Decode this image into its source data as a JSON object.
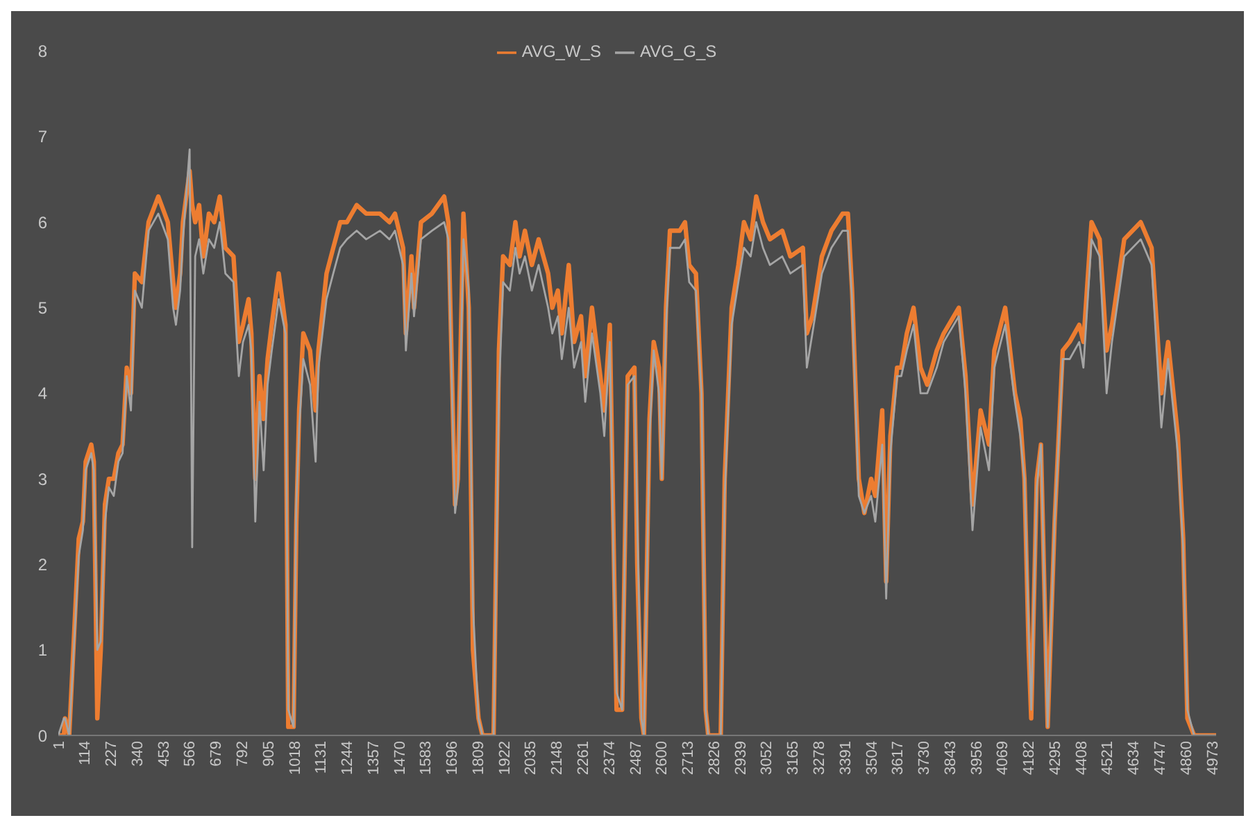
{
  "chart_data": {
    "type": "line",
    "legend": "top",
    "grid": false,
    "x": [
      1,
      25,
      30,
      48,
      89,
      107,
      119,
      143,
      154,
      169,
      184,
      202,
      219,
      240,
      260,
      278,
      296,
      314,
      331,
      361,
      390,
      432,
      473,
      496,
      508,
      526,
      538,
      567,
      578,
      591,
      608,
      626,
      650,
      673,
      697,
      721,
      756,
      779,
      797,
      821,
      833,
      850,
      868,
      886,
      903,
      921,
      951,
      980,
      992,
      1015,
      1027,
      1039,
      1057,
      1086,
      1110,
      1122,
      1157,
      1186,
      1216,
      1245,
      1287,
      1328,
      1387,
      1428,
      1452,
      1487,
      1499,
      1523,
      1534,
      1564,
      1611,
      1664,
      1682,
      1711,
      1723,
      1747,
      1770,
      1788,
      1812,
      1829,
      1877,
      1900,
      1918,
      1947,
      1971,
      1989,
      2012,
      2042,
      2071,
      2112,
      2130,
      2154,
      2171,
      2201,
      2224,
      2254,
      2272,
      2301,
      2337,
      2354,
      2378,
      2396,
      2407,
      2431,
      2455,
      2484,
      2496,
      2514,
      2525,
      2549,
      2567,
      2590,
      2602,
      2620,
      2637,
      2679,
      2702,
      2720,
      2749,
      2773,
      2791,
      2802,
      2856,
      2873,
      2903,
      2932,
      2956,
      2985,
      3009,
      3038,
      3068,
      3121,
      3156,
      3210,
      3227,
      3251,
      3292,
      3333,
      3381,
      3404,
      3422,
      3451,
      3475,
      3504,
      3522,
      3552,
      3569,
      3587,
      3616,
      3634,
      3658,
      3687,
      3717,
      3746,
      3787,
      3817,
      3882,
      3911,
      3941,
      3976,
      4012,
      4035,
      4082,
      4124,
      4147,
      4165,
      4183,
      4194,
      4218,
      4236,
      4265,
      4295,
      4330,
      4360,
      4401,
      4419,
      4454,
      4489,
      4519,
      4542,
      4595,
      4666,
      4713,
      4755,
      4784,
      4826,
      4849,
      4867,
      4896,
      4991
    ],
    "series": [
      {
        "name": "AVG_W_S",
        "color": "#ed7d31",
        "values": [
          0,
          0,
          0.2,
          0,
          2.3,
          2.5,
          3.2,
          3.4,
          3.2,
          0.2,
          1.0,
          2.7,
          3.0,
          3.0,
          3.3,
          3.4,
          4.3,
          4.0,
          5.4,
          5.3,
          6.0,
          6.3,
          6.0,
          5.3,
          5.0,
          5.4,
          6.0,
          6.6,
          6.2,
          6.0,
          6.2,
          5.6,
          6.1,
          6.0,
          6.3,
          5.7,
          5.6,
          4.6,
          4.8,
          5.1,
          4.7,
          3.0,
          4.2,
          3.7,
          4.4,
          4.8,
          5.4,
          4.8,
          0.1,
          0.1,
          2.5,
          3.8,
          4.7,
          4.5,
          3.8,
          4.5,
          5.4,
          5.7,
          6.0,
          6.0,
          6.2,
          6.1,
          6.1,
          6.0,
          6.1,
          5.7,
          4.7,
          5.6,
          5.0,
          6.0,
          6.1,
          6.3,
          6.0,
          2.7,
          3.0,
          6.1,
          5.0,
          1.0,
          0.2,
          0,
          0,
          4.5,
          5.6,
          5.5,
          6.0,
          5.6,
          5.9,
          5.5,
          5.8,
          5.4,
          5.0,
          5.2,
          4.7,
          5.5,
          4.6,
          4.9,
          4.2,
          5.0,
          4.2,
          3.8,
          4.8,
          2.0,
          0.3,
          0.3,
          4.2,
          4.3,
          2.0,
          0.2,
          0,
          3.7,
          4.6,
          4.3,
          3.0,
          5.0,
          5.9,
          5.9,
          6.0,
          5.5,
          5.4,
          4.0,
          0.3,
          0,
          0,
          3.0,
          5.0,
          5.5,
          6.0,
          5.8,
          6.3,
          6.0,
          5.8,
          5.9,
          5.6,
          5.7,
          4.7,
          4.9,
          5.6,
          5.9,
          6.1,
          6.1,
          5.2,
          3.0,
          2.6,
          3.0,
          2.8,
          3.8,
          1.8,
          3.5,
          4.3,
          4.3,
          4.7,
          5.0,
          4.3,
          4.1,
          4.5,
          4.7,
          5.0,
          4.2,
          2.7,
          3.8,
          3.4,
          4.5,
          5.0,
          4.0,
          3.7,
          3.0,
          1.0,
          0.2,
          3.0,
          3.4,
          0.1,
          2.5,
          4.5,
          4.6,
          4.8,
          4.6,
          6.0,
          5.8,
          4.5,
          4.8,
          5.8,
          6.0,
          5.7,
          4.0,
          4.6,
          3.5,
          2.3,
          0.2,
          0,
          0
        ]
      },
      {
        "name": "AVG_G_S",
        "color": "#a5a5a5",
        "values": [
          0,
          0.2,
          0.2,
          0,
          2.1,
          2.4,
          3.1,
          3.3,
          3.1,
          1.0,
          1.1,
          2.5,
          2.9,
          2.8,
          3.2,
          3.3,
          4.2,
          3.8,
          5.2,
          5.0,
          5.9,
          6.1,
          5.8,
          5.0,
          4.8,
          5.2,
          5.8,
          6.85,
          2.2,
          5.6,
          5.8,
          5.4,
          5.8,
          5.7,
          6.0,
          5.4,
          5.3,
          4.2,
          4.6,
          4.8,
          4.5,
          2.5,
          3.9,
          3.1,
          4.1,
          4.5,
          5.1,
          4.7,
          0.3,
          0.1,
          2.7,
          3.6,
          4.4,
          4.1,
          3.2,
          4.3,
          5.1,
          5.4,
          5.7,
          5.8,
          5.9,
          5.8,
          5.9,
          5.8,
          5.9,
          5.5,
          4.5,
          5.4,
          4.9,
          5.8,
          5.9,
          6.0,
          5.8,
          2.6,
          2.9,
          5.8,
          5.2,
          1.5,
          0.2,
          0,
          0,
          4.0,
          5.3,
          5.2,
          5.7,
          5.4,
          5.6,
          5.2,
          5.5,
          5.0,
          4.7,
          4.9,
          4.4,
          5.0,
          4.3,
          4.6,
          3.9,
          4.7,
          4.0,
          3.5,
          4.6,
          1.8,
          0.5,
          0.3,
          4.1,
          4.2,
          2.5,
          0.2,
          0,
          3.5,
          4.5,
          4.0,
          3.0,
          4.8,
          5.7,
          5.7,
          5.8,
          5.3,
          5.2,
          4.0,
          0.3,
          0,
          0,
          2.8,
          4.8,
          5.3,
          5.7,
          5.6,
          6.0,
          5.7,
          5.5,
          5.6,
          5.4,
          5.5,
          4.3,
          4.7,
          5.4,
          5.7,
          5.9,
          5.9,
          5.1,
          2.8,
          2.6,
          2.8,
          2.5,
          3.4,
          1.6,
          3.3,
          4.2,
          4.2,
          4.5,
          4.8,
          4.0,
          4.0,
          4.3,
          4.6,
          4.9,
          4.0,
          2.4,
          3.6,
          3.1,
          4.3,
          4.8,
          3.9,
          3.5,
          3.0,
          1.2,
          0.3,
          2.9,
          3.4,
          0.1,
          2.5,
          4.4,
          4.4,
          4.6,
          4.3,
          5.8,
          5.6,
          4.0,
          4.6,
          5.6,
          5.8,
          5.5,
          3.6,
          4.4,
          3.3,
          2.2,
          0.3,
          0,
          0
        ]
      }
    ],
    "xlim": [
      1,
      4991
    ],
    "xticks": [
      1,
      114,
      227,
      340,
      453,
      566,
      679,
      792,
      905,
      1018,
      1131,
      1244,
      1357,
      1470,
      1583,
      1696,
      1809,
      1922,
      2035,
      2148,
      2261,
      2374,
      2487,
      2600,
      2713,
      2826,
      2939,
      3052,
      3165,
      3278,
      3391,
      3504,
      3617,
      3730,
      3843,
      3956,
      4069,
      4182,
      4295,
      4408,
      4521,
      4634,
      4747,
      4860,
      4973
    ],
    "ylim": [
      0,
      8
    ],
    "yticks": [
      0,
      1,
      2,
      3,
      4,
      5,
      6,
      7,
      8
    ]
  }
}
